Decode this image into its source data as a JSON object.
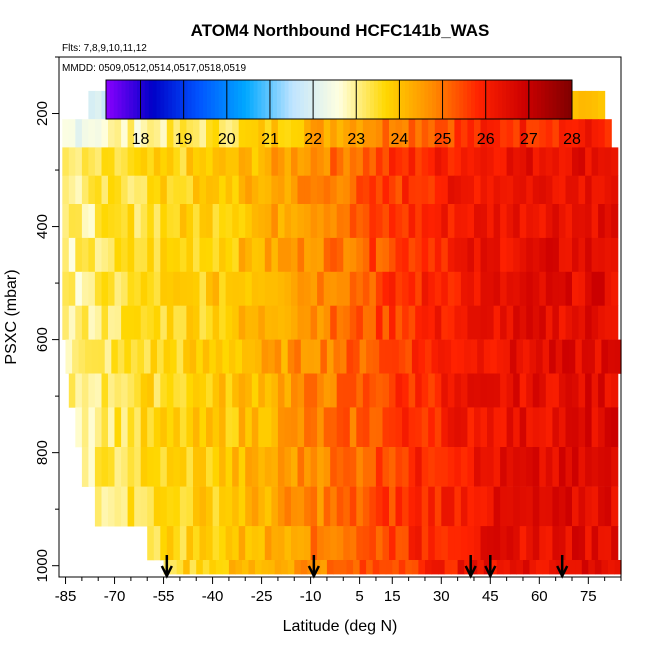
{
  "chart_data": {
    "type": "heatmap",
    "title": "ATOM4 Northbound HCFC141b_WAS",
    "flights_label": "Flts: 7,8,9,10,11,12",
    "dates_label": "MMDD: 0509,0512,0514,0517,0518,0519",
    "xlabel": "Latitude (deg N)",
    "ylabel": "PSXC (mbar)",
    "xlim": [
      -87,
      85
    ],
    "ylim": [
      1020,
      100
    ],
    "x_ticks": [
      -85,
      -70,
      -55,
      -40,
      -25,
      -10,
      5,
      15,
      30,
      45,
      60,
      75
    ],
    "y_ticks": [
      200,
      400,
      600,
      800,
      1000
    ],
    "colorbar": {
      "min": 17.2,
      "max": 28,
      "ticks": [
        18,
        19,
        20,
        21,
        22,
        23,
        24,
        25,
        26,
        27,
        28
      ],
      "colors": [
        "#8a00ff",
        "#0000c8",
        "#0055ff",
        "#00a8ff",
        "#bfe4ff",
        "#ffffe0",
        "#ffd700",
        "#ff8c00",
        "#ff2200",
        "#cc0000",
        "#800000"
      ]
    },
    "arrows_latitude": [
      -54,
      -9,
      39,
      45,
      67
    ],
    "profile": {
      "latitudes": [
        -85,
        -70,
        -55,
        -40,
        -25,
        -10,
        5,
        15,
        30,
        45,
        60,
        75
      ],
      "values": [
        22.9,
        23.3,
        23.6,
        23.8,
        24.2,
        24.8,
        25.2,
        25.6,
        26.0,
        26.3,
        26.4,
        26.5
      ]
    },
    "pressure_bands": [
      {
        "p_top": 160,
        "p_bottom": 210,
        "lat_min": -78,
        "lat_max": 80
      },
      {
        "p_top": 210,
        "p_bottom": 260,
        "lat_min": -86,
        "lat_max": 82
      },
      {
        "p_top": 260,
        "p_bottom": 310,
        "lat_min": -86,
        "lat_max": 84
      },
      {
        "p_top": 310,
        "p_bottom": 360,
        "lat_min": -86,
        "lat_max": 84
      },
      {
        "p_top": 360,
        "p_bottom": 420,
        "lat_min": -86,
        "lat_max": 84
      },
      {
        "p_top": 420,
        "p_bottom": 480,
        "lat_min": -86,
        "lat_max": 84
      },
      {
        "p_top": 480,
        "p_bottom": 540,
        "lat_min": -86,
        "lat_max": 84
      },
      {
        "p_top": 540,
        "p_bottom": 600,
        "lat_min": -86,
        "lat_max": 84
      },
      {
        "p_top": 600,
        "p_bottom": 660,
        "lat_min": -85,
        "lat_max": 84
      },
      {
        "p_top": 660,
        "p_bottom": 720,
        "lat_min": -84,
        "lat_max": 84
      },
      {
        "p_top": 720,
        "p_bottom": 790,
        "lat_min": -82,
        "lat_max": 84
      },
      {
        "p_top": 790,
        "p_bottom": 860,
        "lat_min": -80,
        "lat_max": 84
      },
      {
        "p_top": 860,
        "p_bottom": 930,
        "lat_min": -76,
        "lat_max": 84
      },
      {
        "p_top": 930,
        "p_bottom": 990,
        "lat_min": -60,
        "lat_max": 84
      },
      {
        "p_top": 990,
        "p_bottom": 1015,
        "lat_min": -55,
        "lat_max": 84
      }
    ]
  }
}
